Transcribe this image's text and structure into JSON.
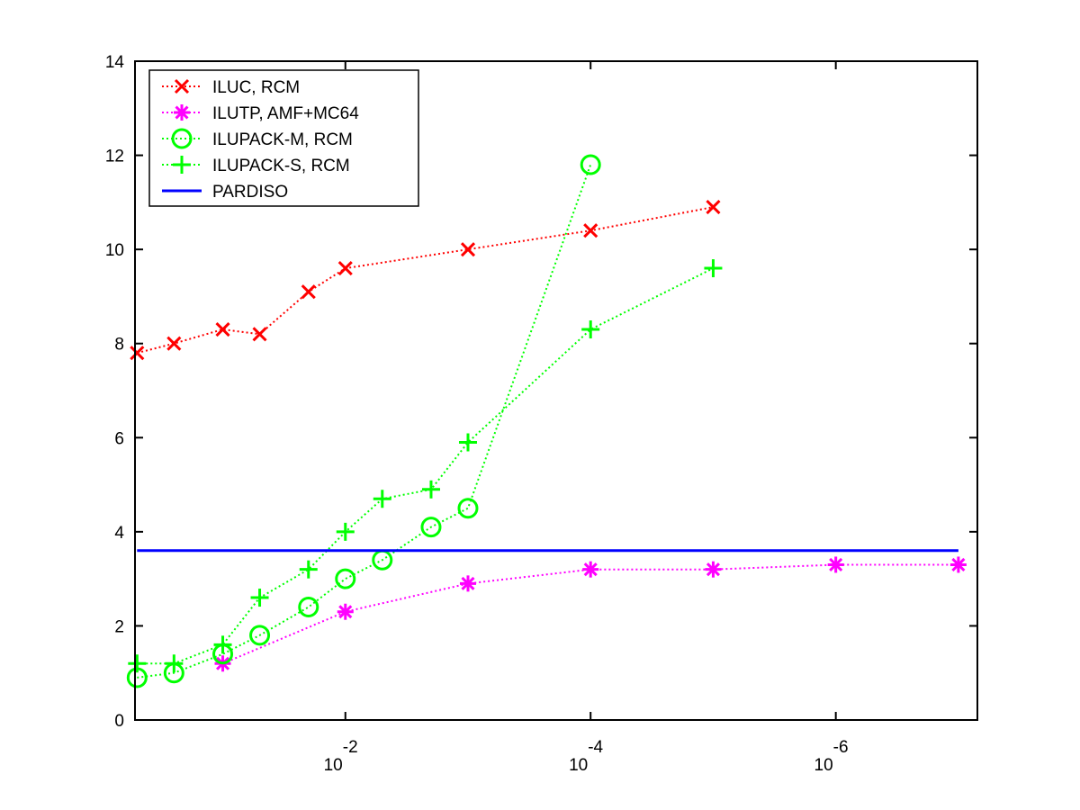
{
  "chart_data": {
    "type": "line",
    "title": "",
    "xlabel": "",
    "ylabel": "",
    "x_scale": "log-reversed",
    "xlim": [
      0.52,
      7e-08
    ],
    "ylim": [
      0,
      14
    ],
    "x_ticks": [
      {
        "value": 0.01,
        "base": "10",
        "exp": "-2"
      },
      {
        "value": 0.0001,
        "base": "10",
        "exp": "-4"
      },
      {
        "value": 1e-06,
        "base": "10",
        "exp": "-6"
      }
    ],
    "y_ticks": [
      0,
      2,
      4,
      6,
      8,
      10,
      12,
      14
    ],
    "grid": false,
    "legend_position": "top-left",
    "series": [
      {
        "name": "ILUC, RCM",
        "color": "#ff0000",
        "marker": "x",
        "style": "dotted",
        "x": [
          0.5,
          0.25,
          0.1,
          0.05,
          0.02,
          0.01,
          0.001,
          0.0001,
          1e-05
        ],
        "y": [
          7.8,
          8.0,
          8.3,
          8.2,
          9.1,
          9.6,
          10.0,
          10.4,
          10.9
        ]
      },
      {
        "name": "ILUTP, AMF+MC64",
        "color": "#ff00ff",
        "marker": "star",
        "style": "dotted",
        "x": [
          0.1,
          0.01,
          0.001,
          0.0001,
          1e-05,
          1e-06,
          1e-07
        ],
        "y": [
          1.2,
          2.3,
          2.9,
          3.2,
          3.2,
          3.3,
          3.3
        ]
      },
      {
        "name": "ILUPACK-M, RCM",
        "color": "#00ff00",
        "marker": "circle",
        "style": "dotted",
        "x": [
          0.5,
          0.25,
          0.1,
          0.05,
          0.02,
          0.01,
          0.005,
          0.002,
          0.001,
          0.0001
        ],
        "y": [
          0.9,
          1.0,
          1.4,
          1.8,
          2.4,
          3.0,
          3.4,
          4.1,
          4.5,
          11.8
        ]
      },
      {
        "name": "ILUPACK-S, RCM",
        "color": "#00ff00",
        "marker": "plus",
        "style": "dotted",
        "x": [
          0.5,
          0.25,
          0.1,
          0.05,
          0.02,
          0.01,
          0.005,
          0.002,
          0.001,
          0.0001,
          1e-05
        ],
        "y": [
          1.2,
          1.2,
          1.6,
          2.6,
          3.2,
          4.0,
          4.7,
          4.9,
          5.9,
          8.3,
          9.6
        ]
      },
      {
        "name": "PARDISO",
        "color": "#0000ff",
        "marker": "none",
        "style": "solid",
        "x": [
          0.5,
          1e-07
        ],
        "y": [
          3.6,
          3.6
        ]
      }
    ]
  }
}
